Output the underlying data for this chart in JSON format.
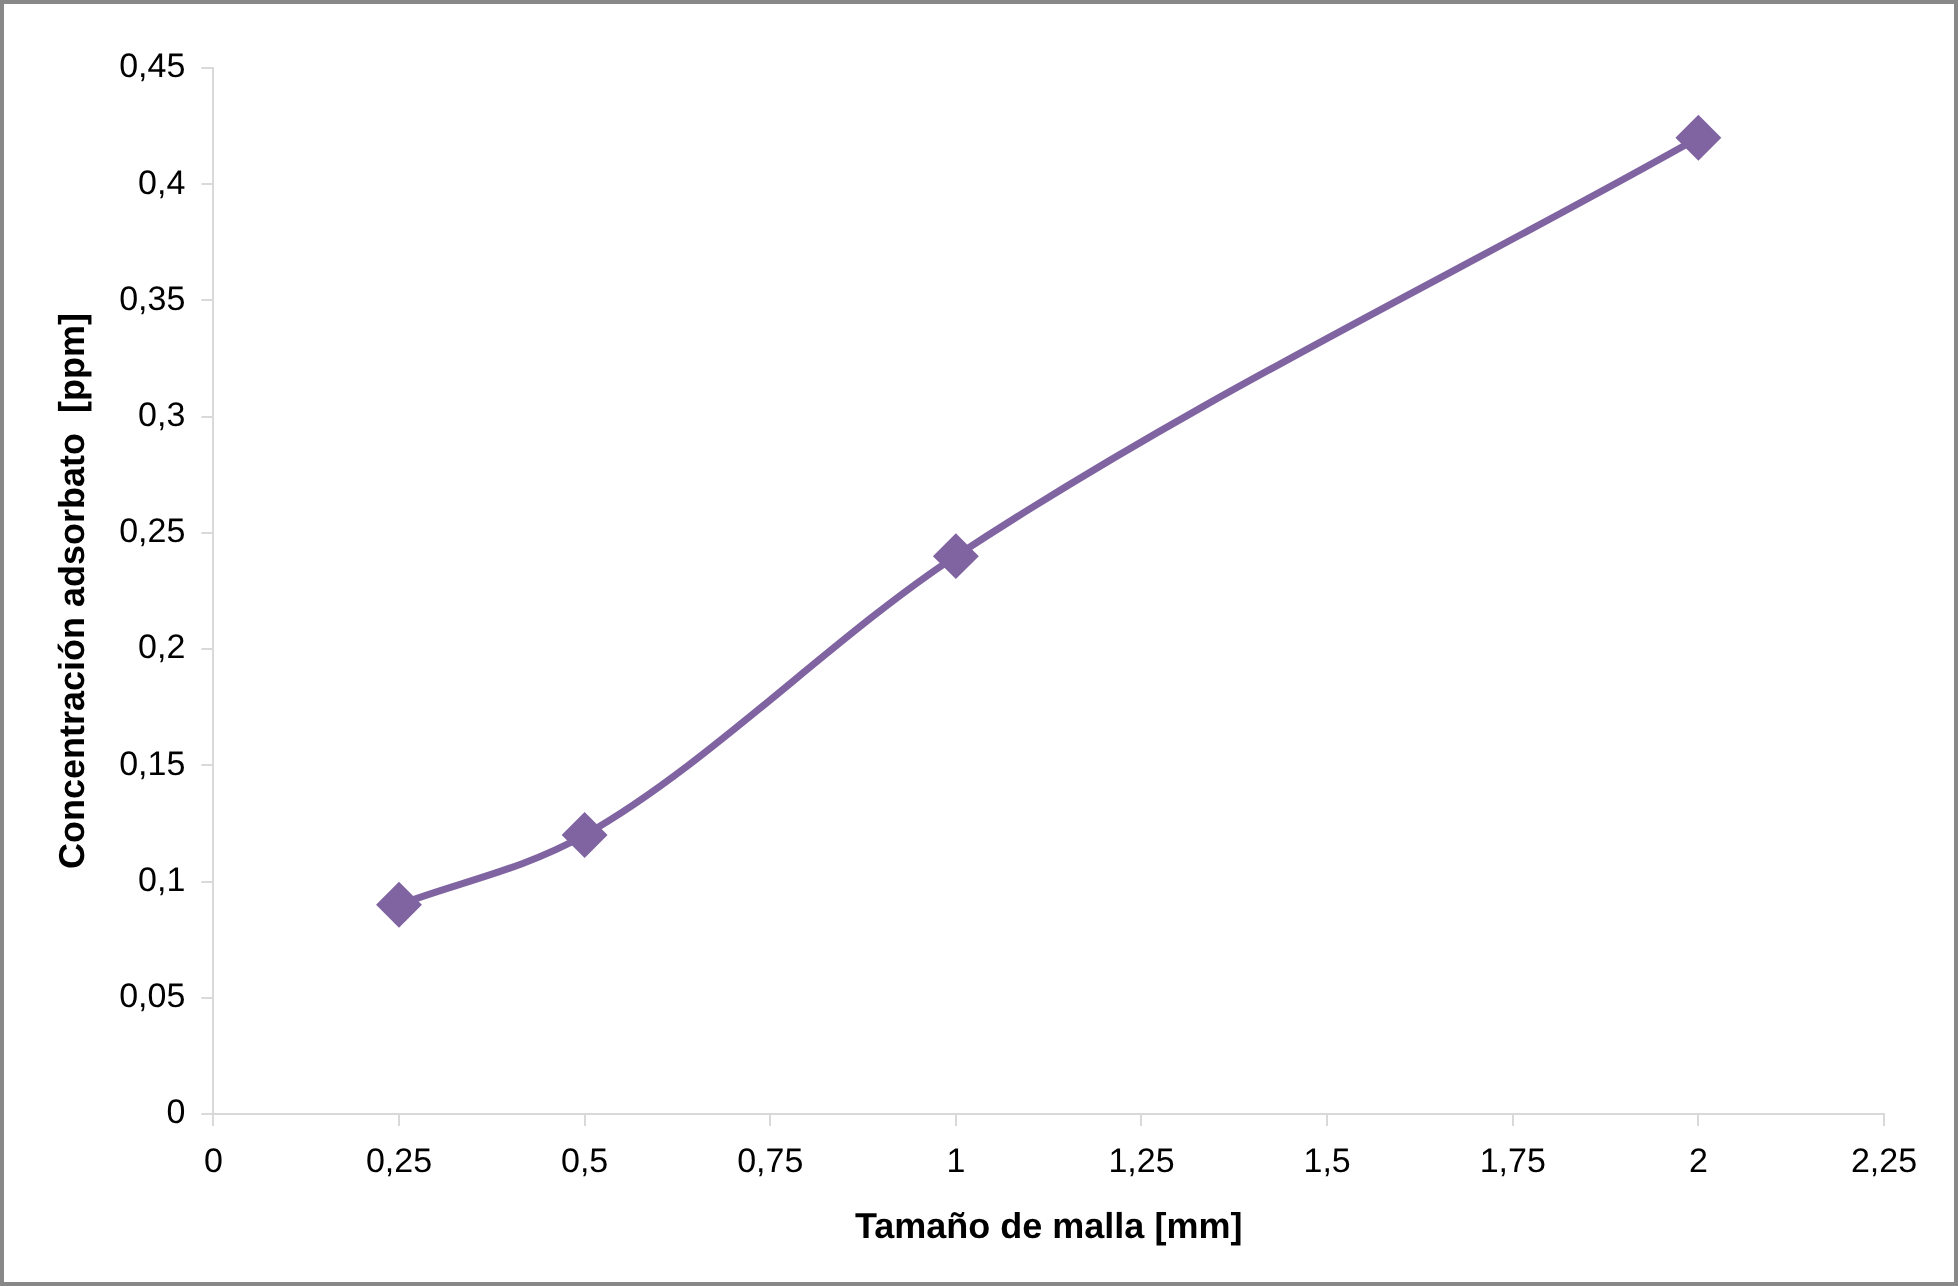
{
  "chart_data": {
    "type": "line",
    "xlabel": "Tamaño de malla [mm]",
    "ylabel": "Concentración adsorbato  [ppm]",
    "x": [
      0.25,
      0.5,
      1,
      2
    ],
    "series": [
      {
        "color": "#8064a2",
        "values": [
          0.09,
          0.12,
          0.24,
          0.42
        ]
      }
    ],
    "xlim": [
      0,
      2.25
    ],
    "ylim": [
      0,
      0.45
    ],
    "xticks": [
      0,
      {
        "value": 0.25,
        "label": "0,25"
      },
      {
        "value": 0.5,
        "label": "0,5"
      },
      {
        "value": 0.75,
        "label": "0,75"
      },
      1,
      {
        "value": 1.25,
        "label": "1,25"
      },
      {
        "value": 1.5,
        "label": "1,5"
      },
      {
        "value": 1.75,
        "label": "1,75"
      },
      2,
      {
        "value": 2.25,
        "label": "2,25"
      }
    ],
    "yticks": [
      0,
      {
        "value": 0.05,
        "label": "0,05"
      },
      {
        "value": 0.1,
        "label": "0,1"
      },
      {
        "value": 0.15,
        "label": "0,15"
      },
      {
        "value": 0.2,
        "label": "0,2"
      },
      {
        "value": 0.25,
        "label": "0,25"
      },
      {
        "value": 0.3,
        "label": "0,3"
      },
      {
        "value": 0.35,
        "label": "0,35"
      },
      {
        "value": 0.4,
        "label": "0,4"
      },
      {
        "value": 0.45,
        "label": "0,45"
      }
    ],
    "grid": false,
    "legend": false,
    "marker": "diamond",
    "line_style": "solid"
  }
}
